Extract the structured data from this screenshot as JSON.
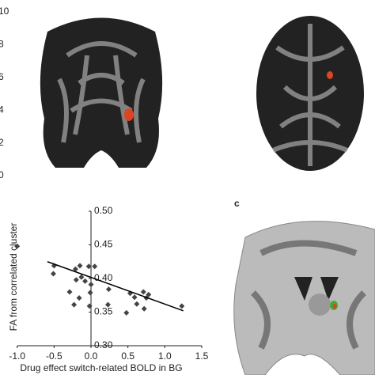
{
  "colorbar": {
    "ticks": [
      10,
      8,
      6,
      4,
      2,
      0
    ],
    "lim": [
      0,
      10
    ]
  },
  "panel_label": "c",
  "chart_data": {
    "type": "scatter",
    "x_label": "Drug effect switch-related BOLD in BG",
    "y_label": "FA from correlated cluster",
    "x": [
      -1.0,
      -0.5,
      -0.51,
      -0.21,
      -0.15,
      -0.03,
      0.05,
      -0.13,
      -0.08,
      -0.2,
      0.0,
      -0.29,
      -0.01,
      -0.16,
      0.24,
      -0.23,
      -0.02,
      0.23,
      0.53,
      0.59,
      0.71,
      0.78,
      0.75,
      0.62,
      0.72,
      0.48,
      1.23
    ],
    "values": [
      0.448,
      0.419,
      0.407,
      0.414,
      0.419,
      0.418,
      0.418,
      0.402,
      0.396,
      0.398,
      0.391,
      0.38,
      0.379,
      0.371,
      0.384,
      0.361,
      0.359,
      0.361,
      0.378,
      0.372,
      0.38,
      0.376,
      0.371,
      0.362,
      0.355,
      0.349,
      0.359
    ],
    "color": "#444444",
    "trend_line": {
      "x": [
        -0.59,
        1.25
      ],
      "y": [
        0.425,
        0.352
      ],
      "color": "#000000"
    },
    "xlim": [
      -1.0,
      1.5
    ],
    "ylim": [
      0.3,
      0.5
    ],
    "xticks": [
      {
        "value": -1.0,
        "label": "-1.0"
      },
      {
        "value": -0.5,
        "label": "-0.5"
      },
      {
        "value": 0.0,
        "label": "0.0"
      },
      {
        "value": 0.5,
        "label": "0.5"
      },
      {
        "value": 1.0,
        "label": "1.0"
      },
      {
        "value": 1.5,
        "label": "1.5"
      }
    ],
    "yticks": [
      {
        "value": 0.5,
        "label": "0.50"
      },
      {
        "value": 0.45,
        "label": "0.45"
      },
      {
        "value": 0.4,
        "label": "0.40"
      },
      {
        "value": 0.35,
        "label": "0.35"
      },
      {
        "value": 0.3,
        "label": "0.30"
      }
    ]
  }
}
